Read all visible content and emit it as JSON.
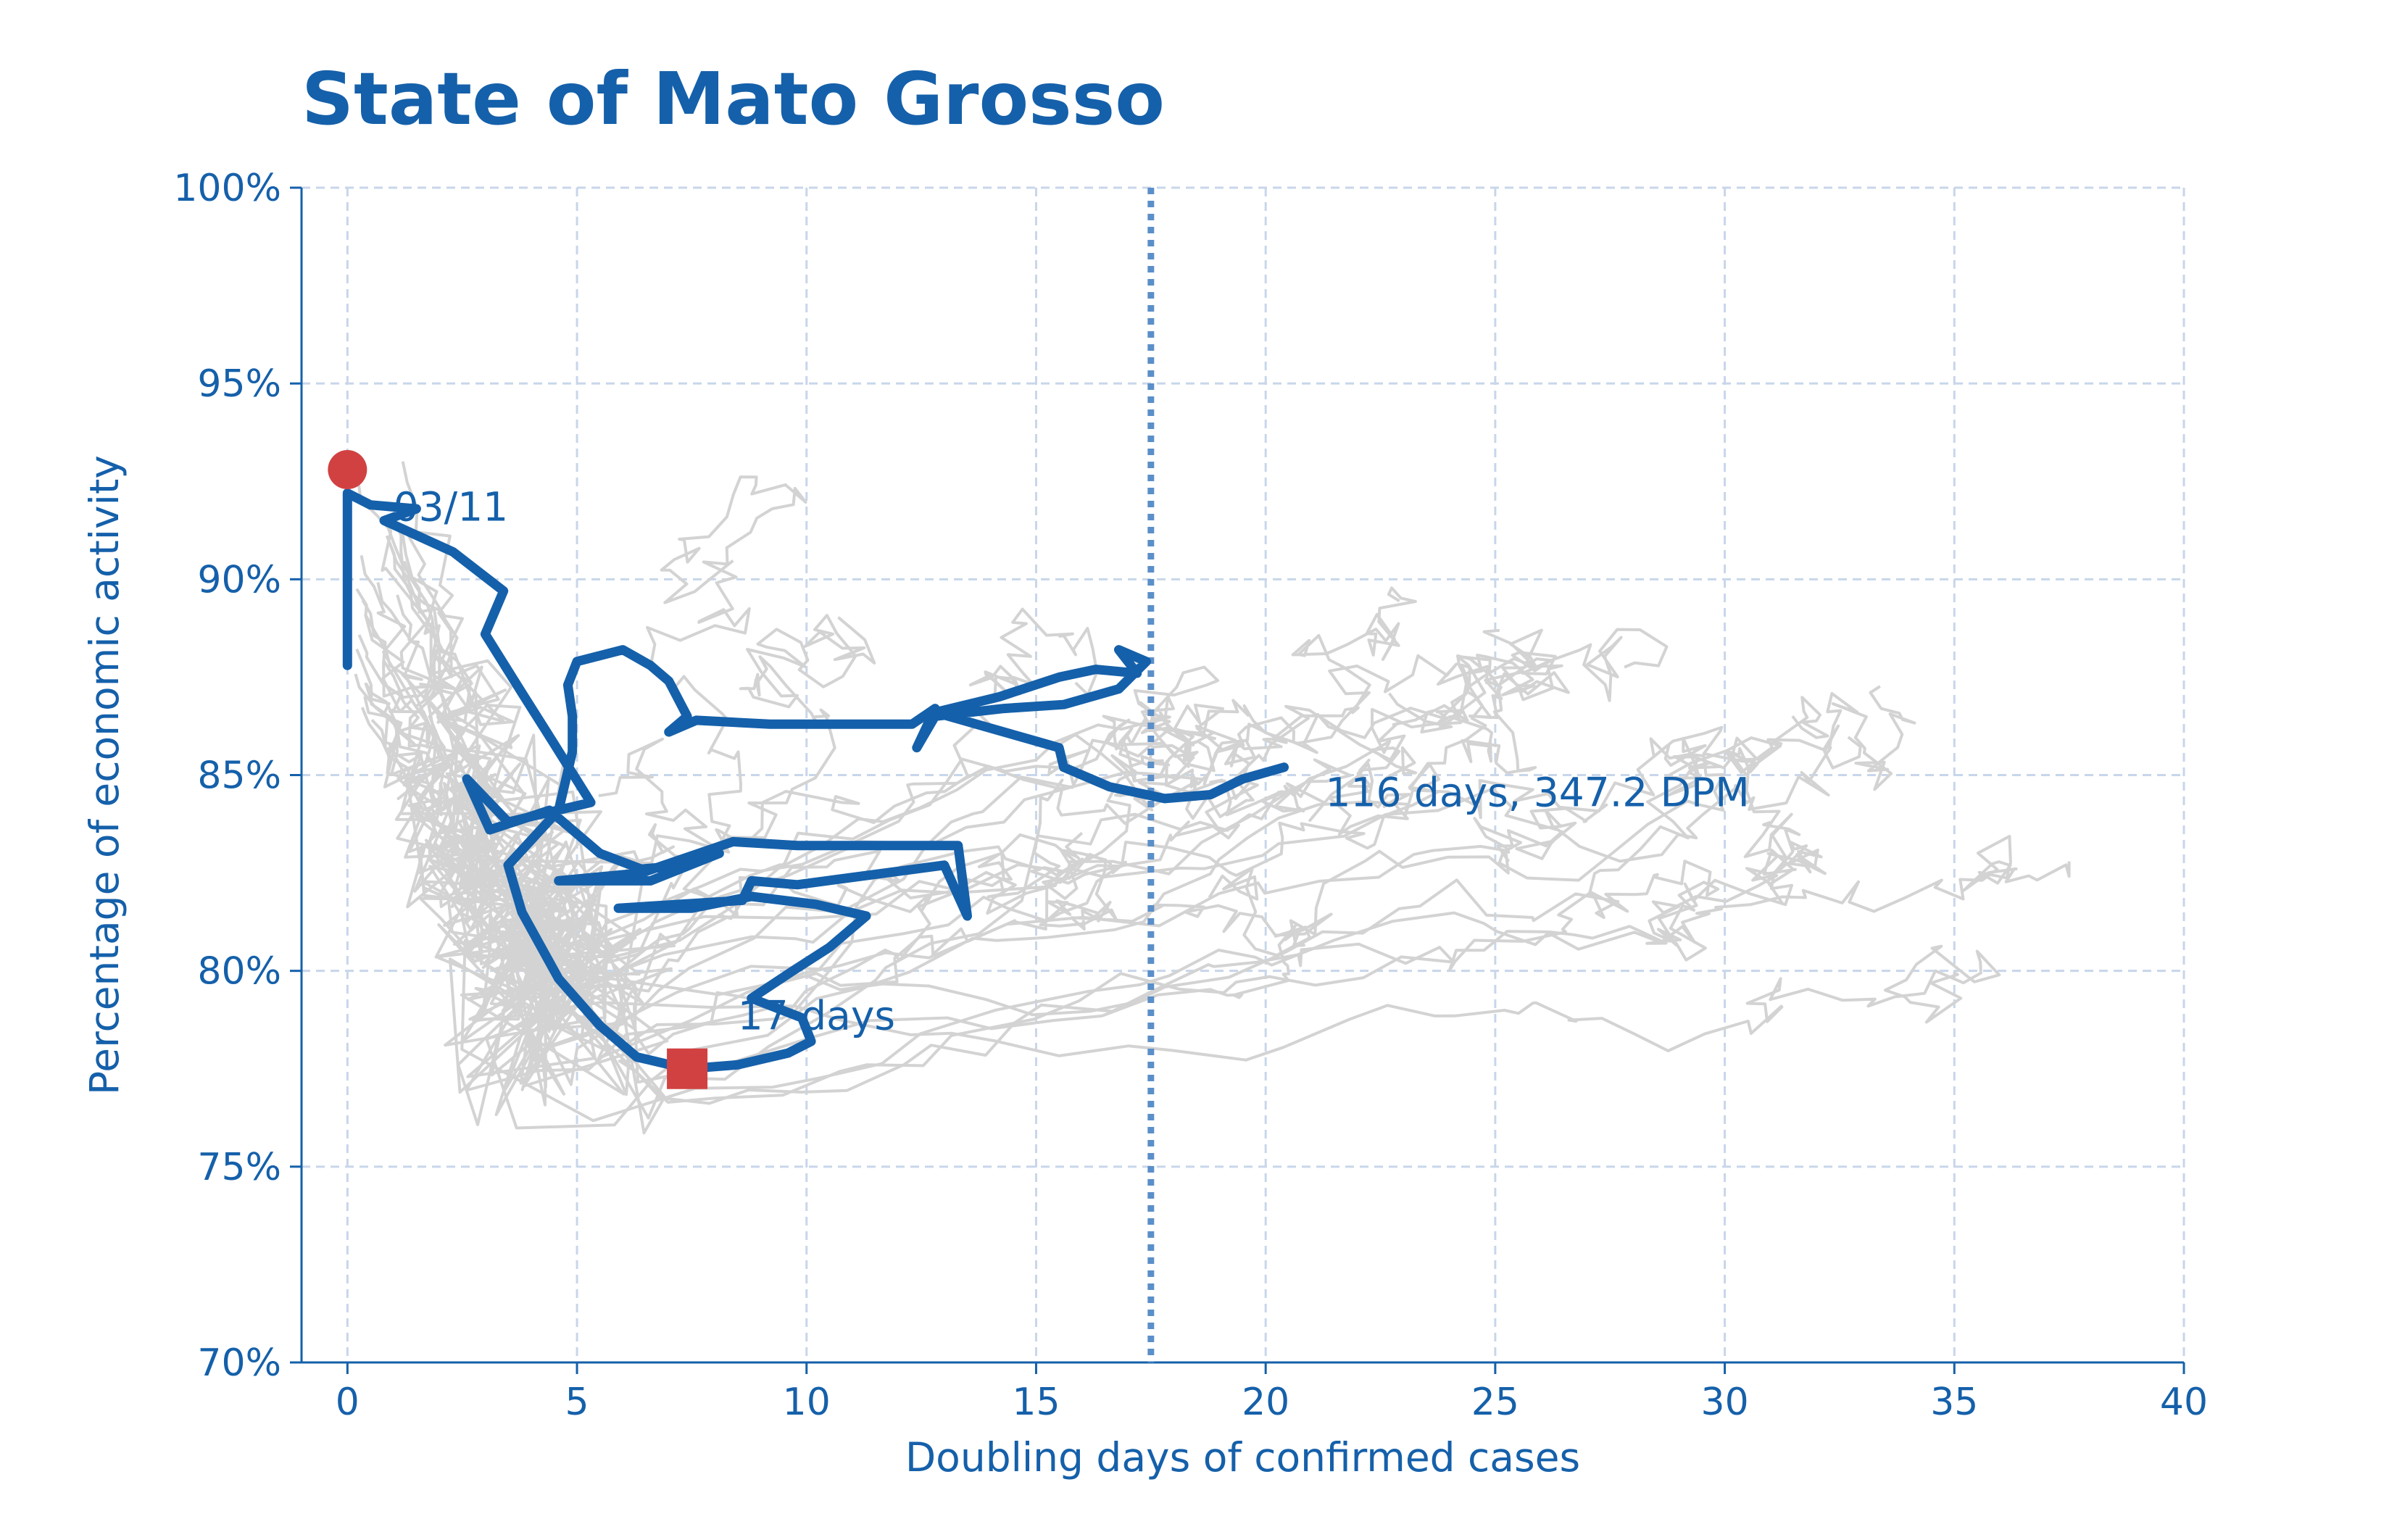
{
  "chart_data": {
    "type": "line",
    "title": "State of Mato Grosso",
    "xlabel": "Doubling days of confirmed cases",
    "ylabel": "Percentage of economic activity",
    "xlim": [
      -1,
      40
    ],
    "ylim": [
      70,
      100
    ],
    "x_ticks": [
      0,
      5,
      10,
      15,
      20,
      25,
      30,
      35,
      40
    ],
    "x_tick_labels": [
      "0",
      "5",
      "10",
      "15",
      "20",
      "25",
      "30",
      "35",
      "40"
    ],
    "y_ticks": [
      70,
      75,
      80,
      85,
      90,
      95,
      100
    ],
    "y_tick_labels": [
      "70%",
      "75%",
      "80%",
      "85%",
      "90%",
      "95%",
      "100%"
    ],
    "grid": true,
    "reference_line_x": 17.5,
    "colors": {
      "highlight": "#1560aa",
      "background_series": "#d3d3d3",
      "markers": "#d24141",
      "reference_line": "#5b8fc9",
      "grid": "#c8d6ea"
    },
    "series": [
      {
        "role": "highlight",
        "points": [
          [
            0,
            87.8
          ],
          [
            0,
            89.0
          ],
          [
            0,
            90.5
          ],
          [
            0,
            92.2
          ],
          [
            0.5,
            91.9
          ],
          [
            1.5,
            91.8
          ],
          [
            0.8,
            91.5
          ],
          [
            2.3,
            90.7
          ],
          [
            3.4,
            89.7
          ],
          [
            3.0,
            88.6
          ],
          [
            3.8,
            87.1
          ],
          [
            4.5,
            85.8
          ],
          [
            5.3,
            84.3
          ],
          [
            3.5,
            83.8
          ],
          [
            2.6,
            84.9
          ],
          [
            3.1,
            83.6
          ],
          [
            4.4,
            84.1
          ],
          [
            5.5,
            83.0
          ],
          [
            6.4,
            82.6
          ],
          [
            7.4,
            82.7
          ],
          [
            8.1,
            83.0
          ],
          [
            6.6,
            82.3
          ],
          [
            4.6,
            82.3
          ],
          [
            6.4,
            82.5
          ],
          [
            8.4,
            83.3
          ],
          [
            9.8,
            83.2
          ],
          [
            13.3,
            83.2
          ],
          [
            13.5,
            81.4
          ],
          [
            13.0,
            82.7
          ],
          [
            9.8,
            82.2
          ],
          [
            8.8,
            82.3
          ],
          [
            8.6,
            81.8
          ],
          [
            5.9,
            81.6
          ],
          [
            7.5,
            81.6
          ],
          [
            8.8,
            81.9
          ],
          [
            10.2,
            81.7
          ],
          [
            11.3,
            81.4
          ],
          [
            10.5,
            80.6
          ],
          [
            9.7,
            80.0
          ],
          [
            8.8,
            79.3
          ],
          [
            9.9,
            78.8
          ],
          [
            10.1,
            78.2
          ],
          [
            9.6,
            77.9
          ],
          [
            8.5,
            77.6
          ],
          [
            7.4,
            77.5
          ],
          [
            6.3,
            77.8
          ],
          [
            5.5,
            78.6
          ],
          [
            4.6,
            79.8
          ],
          [
            3.8,
            81.5
          ],
          [
            3.5,
            82.7
          ],
          [
            4.6,
            84.1
          ],
          [
            4.9,
            85.6
          ],
          [
            4.9,
            86.5
          ],
          [
            4.8,
            87.3
          ],
          [
            5.0,
            87.9
          ],
          [
            6.0,
            88.2
          ],
          [
            6.6,
            87.8
          ],
          [
            7.0,
            87.4
          ],
          [
            7.4,
            86.5
          ],
          [
            7.0,
            86.1
          ],
          [
            7.6,
            86.4
          ],
          [
            9.2,
            86.3
          ],
          [
            10.5,
            86.3
          ],
          [
            12.3,
            86.3
          ],
          [
            12.8,
            86.7
          ],
          [
            12.4,
            85.7
          ],
          [
            12.8,
            86.5
          ],
          [
            14.3,
            86.7
          ],
          [
            15.6,
            86.8
          ],
          [
            16.8,
            87.2
          ],
          [
            17.4,
            87.9
          ],
          [
            16.8,
            88.2
          ],
          [
            17.2,
            87.6
          ],
          [
            16.3,
            87.7
          ],
          [
            15.5,
            87.5
          ],
          [
            14.2,
            87.0
          ],
          [
            12.8,
            86.6
          ],
          [
            14.6,
            86.0
          ],
          [
            15.5,
            85.7
          ],
          [
            15.6,
            85.2
          ],
          [
            16.6,
            84.7
          ],
          [
            17.8,
            84.4
          ],
          [
            18.8,
            84.5
          ],
          [
            19.5,
            84.9
          ],
          [
            20.4,
            85.2
          ]
        ]
      }
    ],
    "background_series_count": 26,
    "markers": [
      {
        "shape": "circle",
        "x": 0,
        "y": 92.8
      },
      {
        "shape": "square",
        "x": 7.4,
        "y": 77.5
      }
    ],
    "annotations": [
      {
        "text": "03/11",
        "x": 1.0,
        "y": 91.5
      },
      {
        "text": "17 days",
        "x": 8.5,
        "y": 78.5
      },
      {
        "text": "116 days, 347.2 DPM",
        "x": 21.3,
        "y": 84.2
      }
    ]
  }
}
